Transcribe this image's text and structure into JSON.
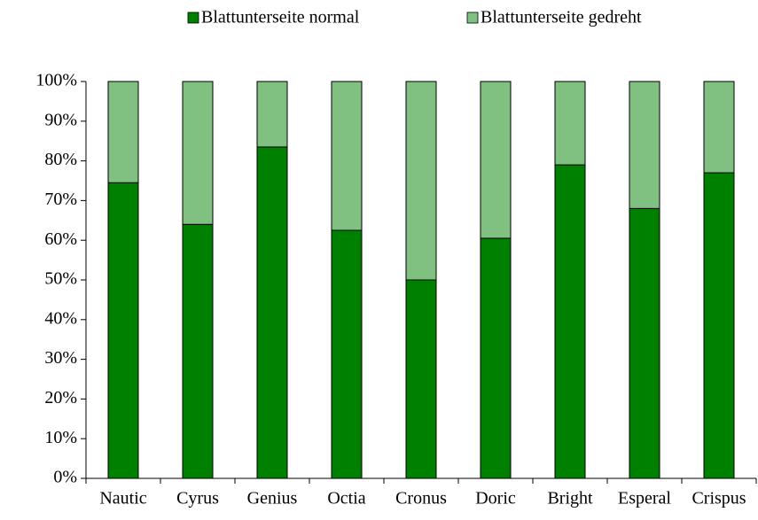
{
  "chart_data": {
    "type": "stacked_bar",
    "categories": [
      "Nautic",
      "Cyrus",
      "Genius",
      "Octia",
      "Cronus",
      "Doric",
      "Bright",
      "Esperal",
      "Crispus"
    ],
    "series": [
      {
        "name": "Blattunterseite normal",
        "color": "#008000",
        "values": [
          74.5,
          64,
          83.5,
          62.5,
          50,
          60.5,
          79,
          68,
          77
        ]
      },
      {
        "name": "Blattunterseite gedreht",
        "color": "#80c080",
        "values": [
          25.5,
          36,
          16.5,
          37.5,
          50,
          39.5,
          21,
          32,
          23
        ]
      }
    ],
    "ylim": [
      0,
      100
    ],
    "yticks": [
      {
        "value": 0,
        "label": "0%"
      },
      {
        "value": 10,
        "label": "10%"
      },
      {
        "value": 20,
        "label": "20%"
      },
      {
        "value": 30,
        "label": "30%"
      },
      {
        "value": 40,
        "label": "40%"
      },
      {
        "value": 50,
        "label": "50%"
      },
      {
        "value": 60,
        "label": "60%"
      },
      {
        "value": 70,
        "label": "70%"
      },
      {
        "value": 80,
        "label": "80%"
      },
      {
        "value": 90,
        "label": "90%"
      },
      {
        "value": 100,
        "label": "100%"
      }
    ],
    "grid": false,
    "legend": "top"
  }
}
